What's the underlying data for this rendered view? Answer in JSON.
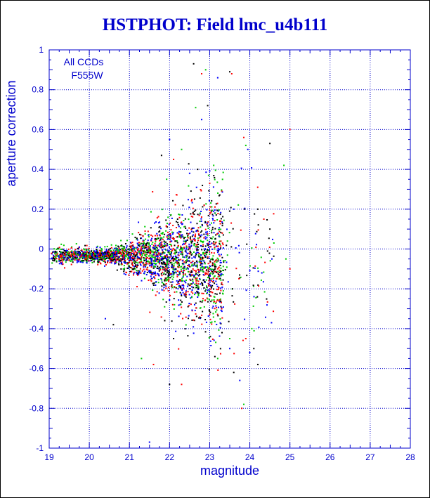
{
  "chart_data": {
    "type": "scatter",
    "title": "HSTPHOT: Field lmc_u4b111",
    "xlabel": "magnitude",
    "ylabel": "aperture correction",
    "xlim": [
      19,
      28
    ],
    "ylim": [
      -1,
      1
    ],
    "x_ticks": [
      "19",
      "20",
      "21",
      "22",
      "23",
      "24",
      "25",
      "26",
      "27",
      "28"
    ],
    "y_ticks": [
      "1",
      "0.8",
      "0.6",
      "0.4",
      "0.2",
      "0",
      "-0.2",
      "-0.4",
      "-0.6",
      "-0.8",
      "-1"
    ],
    "grid": true,
    "annotation": [
      "All CCDs",
      "F555W"
    ],
    "series_colors": [
      "#000000",
      "#ff0000",
      "#00cc00",
      "#0000ff"
    ],
    "outliers": [
      [
        22.6,
        0.93
      ],
      [
        22.8,
        0.88
      ],
      [
        22.9,
        0.9
      ],
      [
        23.2,
        0.86
      ],
      [
        23.5,
        0.89
      ],
      [
        23.55,
        0.88
      ],
      [
        22.65,
        0.71
      ],
      [
        22.8,
        0.65
      ],
      [
        22.95,
        0.72
      ],
      [
        23.85,
        0.56
      ],
      [
        23.9,
        0.52
      ],
      [
        23.95,
        0.5
      ],
      [
        24.5,
        0.53
      ],
      [
        25.0,
        0.6
      ],
      [
        24.85,
        0.42
      ],
      [
        22.0,
        0.55
      ],
      [
        21.8,
        0.47
      ],
      [
        22.1,
        0.45
      ],
      [
        22.3,
        0.5
      ],
      [
        22.5,
        0.38
      ],
      [
        22.7,
        0.4
      ],
      [
        23.0,
        0.33
      ],
      [
        23.1,
        0.42
      ],
      [
        23.6,
        0.2
      ],
      [
        24.2,
        0.2
      ],
      [
        24.35,
        0.15
      ],
      [
        24.6,
        0.03
      ],
      [
        24.55,
        -0.05
      ],
      [
        24.5,
        0.1
      ],
      [
        25.0,
        -0.1
      ],
      [
        24.9,
        -0.05
      ],
      [
        24.3,
        -0.12
      ],
      [
        22.1,
        -0.45
      ],
      [
        21.6,
        -0.58
      ],
      [
        21.3,
        -0.55
      ],
      [
        21.5,
        -0.97
      ],
      [
        22.0,
        -0.68
      ],
      [
        22.3,
        -0.68
      ],
      [
        23.2,
        -0.55
      ],
      [
        23.5,
        -0.5
      ],
      [
        23.6,
        -0.62
      ],
      [
        23.8,
        -0.8
      ],
      [
        23.85,
        -0.78
      ],
      [
        24.0,
        -0.52
      ],
      [
        24.1,
        -0.5
      ],
      [
        23.9,
        -0.45
      ],
      [
        24.05,
        -0.4
      ],
      [
        20.4,
        -0.35
      ],
      [
        20.6,
        -0.38
      ],
      [
        23.3,
        -0.3
      ],
      [
        23.5,
        -0.45
      ],
      [
        23.75,
        -0.66
      ],
      [
        24.2,
        -0.58
      ]
    ]
  }
}
